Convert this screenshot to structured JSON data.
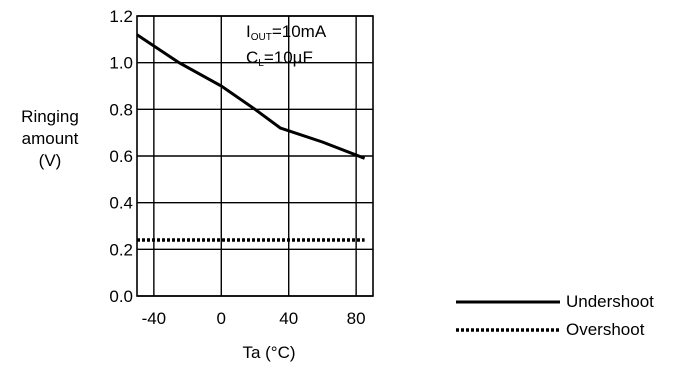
{
  "chart_data": {
    "type": "line",
    "xlabel": "Ta (°C)",
    "ylabel_lines": [
      "Ringing",
      "amount",
      "(V)"
    ],
    "xlim": [
      -50,
      90
    ],
    "ylim": [
      0.0,
      1.2
    ],
    "xticks": [
      "-40",
      "0",
      "40",
      "80"
    ],
    "xtick_values": [
      -40,
      0,
      40,
      80
    ],
    "yticks": [
      "0.0",
      "0.2",
      "0.4",
      "0.6",
      "0.8",
      "1.0",
      "1.2"
    ],
    "ytick_values": [
      0.0,
      0.2,
      0.4,
      0.6,
      0.8,
      1.0,
      1.2
    ],
    "grid": true,
    "annotation": {
      "line1_main": "I",
      "line1_sub": "OUT",
      "line1_rest": "=10mA",
      "line2_main": "C",
      "line2_sub": "L",
      "line2_rest": "=10µF"
    },
    "series": [
      {
        "name": "Undershoot",
        "style": "solid",
        "x": [
          -50,
          -25,
          0,
          20,
          35,
          60,
          85
        ],
        "y": [
          1.12,
          1.0,
          0.9,
          0.8,
          0.72,
          0.66,
          0.59
        ]
      },
      {
        "name": "Overshoot",
        "style": "dotted",
        "x": [
          -50,
          85
        ],
        "y": [
          0.24,
          0.24
        ]
      }
    ],
    "legend_position": "bottom-right"
  }
}
